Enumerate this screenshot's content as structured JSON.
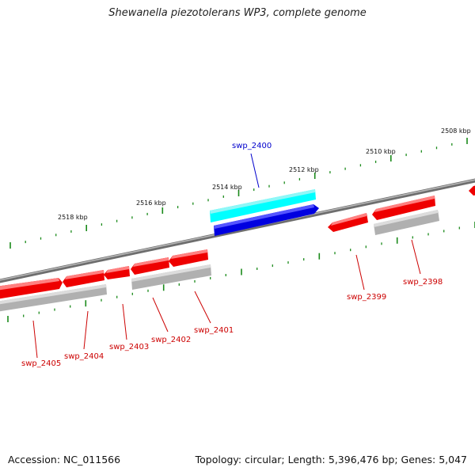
{
  "title": "Shewanella piezotolerans WP3, complete genome",
  "footer": {
    "accession": "Accession: NC_011566",
    "summary": "Topology: circular; Length: 5,396,476 bp; Genes: 5,047"
  },
  "colors": {
    "backbone": "#7a7a7a",
    "forward_gene": "#ff0000",
    "selected_gene": "#0000dd",
    "selected_highlight": "#00ffff",
    "cds_track": "#b0b0b0",
    "tick": "#1a8a1a",
    "label_red": "#cc0000",
    "label_blue": "#0000cc"
  },
  "ruler": [
    {
      "label": "2518 kbp",
      "kbp": 2518
    },
    {
      "label": "2516 kbp",
      "kbp": 2516
    },
    {
      "label": "2514 kbp",
      "kbp": 2514
    },
    {
      "label": "2512 kbp",
      "kbp": 2512
    },
    {
      "label": "2510 kbp",
      "kbp": 2510
    },
    {
      "label": "2508 kbp",
      "kbp": 2508
    }
  ],
  "genes": [
    {
      "name": "swp_2405",
      "color": "red"
    },
    {
      "name": "swp_2404",
      "color": "red"
    },
    {
      "name": "swp_2403",
      "color": "red"
    },
    {
      "name": "swp_2402",
      "color": "red"
    },
    {
      "name": "swp_2401",
      "color": "red"
    },
    {
      "name": "swp_2400",
      "color": "blue",
      "selected": true
    },
    {
      "name": "swp_2399",
      "color": "red"
    },
    {
      "name": "swp_2398",
      "color": "red"
    }
  ]
}
